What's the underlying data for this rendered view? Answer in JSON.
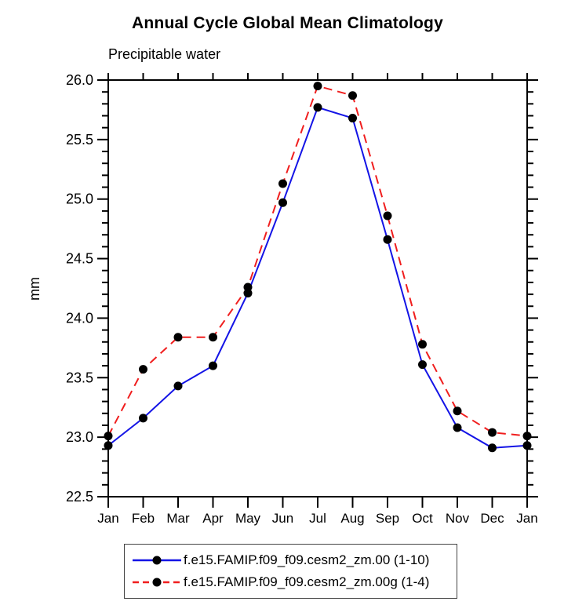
{
  "chart_data": {
    "type": "line",
    "title": "Annual Cycle Global Mean Climatology",
    "subtitle": "Precipitable water",
    "ylabel": "mm",
    "ylim": [
      22.5,
      26.0
    ],
    "ytick_step": 0.5,
    "yminor_step": 0.1,
    "ytick_labels": [
      "22.5",
      "23.0",
      "23.5",
      "24.0",
      "24.5",
      "25.0",
      "25.5",
      "26.0"
    ],
    "grid": false,
    "legend_position": "bottom",
    "categories": [
      "Jan",
      "Feb",
      "Mar",
      "Apr",
      "May",
      "Jun",
      "Jul",
      "Aug",
      "Sep",
      "Oct",
      "Nov",
      "Dec",
      "Jan"
    ],
    "axis_color": "#000000",
    "marker_color": "#000000",
    "series": [
      {
        "name": "f.e15.FAMIP.f09_f09.cesm2_zm.00 (1-10)",
        "color": "#1414e6",
        "line_style": "solid",
        "marker": "circle",
        "values": [
          22.93,
          23.16,
          23.43,
          23.6,
          24.21,
          24.97,
          25.77,
          25.68,
          24.66,
          23.61,
          23.08,
          22.91,
          22.93
        ]
      },
      {
        "name": "f.e15.FAMIP.f09_f09.cesm2_zm.00g (1-4)",
        "color": "#f01e1e",
        "line_style": "dashed",
        "marker": "circle",
        "values": [
          23.01,
          23.57,
          23.84,
          23.84,
          24.26,
          25.13,
          25.95,
          25.87,
          24.86,
          23.78,
          23.22,
          23.04,
          23.01
        ]
      }
    ]
  }
}
